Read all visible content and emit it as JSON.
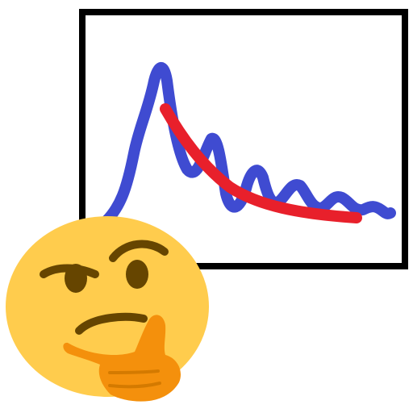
{
  "image": {
    "subject": "thinking-face-emoji-with-squiggly-plot",
    "elements": {
      "plot_frame": "black-square-frame",
      "noisy_curve": "blue-squiggle",
      "fit_curve": "red-smooth-decay",
      "emoji": "thinking-face"
    }
  },
  "colors": {
    "background": "#ffffff",
    "frame": "#000000",
    "blue_curve": "#3f4bd1",
    "red_curve": "#e8202b",
    "face": "#ffcc4d",
    "features": "#664500",
    "hand": "#f4900c"
  }
}
